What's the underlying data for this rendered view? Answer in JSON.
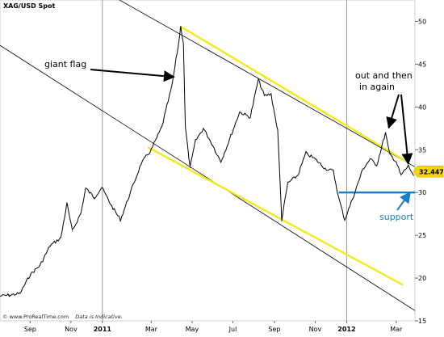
{
  "chart_data": {
    "type": "line",
    "title": "XAG/USD Spot",
    "footer_source": "www.ProRealTime.com",
    "footer_note": "Data is Indicative.",
    "x_axis": {
      "type": "date",
      "range": [
        "2010-08-01",
        "2012-04-12"
      ],
      "tick_labels": [
        {
          "label": "Sep",
          "date": "2010-09-15",
          "bold": false
        },
        {
          "label": "Nov",
          "date": "2010-11-15",
          "bold": false
        },
        {
          "label": "2011",
          "date": "2011-01-01",
          "bold": true
        },
        {
          "label": "Mar",
          "date": "2011-03-15",
          "bold": false
        },
        {
          "label": "May",
          "date": "2011-05-15",
          "bold": false
        },
        {
          "label": "Jul",
          "date": "2011-07-15",
          "bold": false
        },
        {
          "label": "Sep",
          "date": "2011-09-15",
          "bold": false
        },
        {
          "label": "Nov",
          "date": "2011-11-15",
          "bold": false
        },
        {
          "label": "2012",
          "date": "2012-01-01",
          "bold": true
        },
        {
          "label": "Mar",
          "date": "2012-03-15",
          "bold": false
        }
      ],
      "year_lines": [
        "2011-01-01",
        "2012-01-01"
      ]
    },
    "y_axis": {
      "side": "right",
      "range": [
        15,
        52.5
      ],
      "ticks": [
        15,
        20,
        25,
        30,
        35,
        40,
        45,
        50
      ]
    },
    "grid": false,
    "series": [
      {
        "color": "#000000",
        "points": [
          [
            "2010-08-01",
            17.9
          ],
          [
            "2010-08-15",
            18.0
          ],
          [
            "2010-08-31",
            18.2
          ],
          [
            "2010-09-15",
            20.4
          ],
          [
            "2010-09-30",
            21.5
          ],
          [
            "2010-10-15",
            23.8
          ],
          [
            "2010-10-31",
            24.7
          ],
          [
            "2010-11-09",
            28.7
          ],
          [
            "2010-11-17",
            25.5
          ],
          [
            "2010-11-30",
            27.6
          ],
          [
            "2010-12-07",
            30.5
          ],
          [
            "2010-12-20",
            29.4
          ],
          [
            "2010-12-31",
            30.6
          ],
          [
            "2011-01-15",
            28.4
          ],
          [
            "2011-01-28",
            26.8
          ],
          [
            "2011-02-10",
            29.6
          ],
          [
            "2011-02-28",
            33.4
          ],
          [
            "2011-03-15",
            35.0
          ],
          [
            "2011-03-31",
            37.7
          ],
          [
            "2011-04-15",
            42.5
          ],
          [
            "2011-04-25",
            47.5
          ],
          [
            "2011-04-28",
            49.4
          ],
          [
            "2011-05-02",
            47.5
          ],
          [
            "2011-05-05",
            37.6
          ],
          [
            "2011-05-12",
            32.9
          ],
          [
            "2011-05-20",
            36.0
          ],
          [
            "2011-06-01",
            37.5
          ],
          [
            "2011-06-15",
            35.5
          ],
          [
            "2011-06-27",
            33.6
          ],
          [
            "2011-07-10",
            36.2
          ],
          [
            "2011-07-25",
            39.4
          ],
          [
            "2011-08-10",
            38.8
          ],
          [
            "2011-08-22",
            43.2
          ],
          [
            "2011-08-31",
            41.3
          ],
          [
            "2011-09-10",
            41.5
          ],
          [
            "2011-09-20",
            37.2
          ],
          [
            "2011-09-26",
            26.8
          ],
          [
            "2011-10-05",
            31.1
          ],
          [
            "2011-10-20",
            32.0
          ],
          [
            "2011-11-01",
            34.6
          ],
          [
            "2011-11-15",
            33.9
          ],
          [
            "2011-11-30",
            32.8
          ],
          [
            "2011-12-12",
            32.5
          ],
          [
            "2011-12-20",
            29.4
          ],
          [
            "2011-12-29",
            26.8
          ],
          [
            "2012-01-10",
            29.3
          ],
          [
            "2012-01-25",
            32.7
          ],
          [
            "2012-02-05",
            33.9
          ],
          [
            "2012-02-15",
            33.2
          ],
          [
            "2012-02-28",
            37.0
          ],
          [
            "2012-03-05",
            34.5
          ],
          [
            "2012-03-15",
            33.6
          ],
          [
            "2012-03-22",
            32.0
          ],
          [
            "2012-04-02",
            33.1
          ],
          [
            "2012-04-10",
            32.0
          ]
        ]
      }
    ],
    "lines": [
      {
        "name": "upper-trendline",
        "color": "#f2ea1a",
        "from": [
          "2011-04-28",
          49.4
        ],
        "to": [
          "2012-04-02",
          33.5
        ]
      },
      {
        "name": "lower-trendline",
        "color": "#f2ea1a",
        "from": [
          "2011-03-10",
          35.3
        ],
        "to": [
          "2012-03-25",
          19.2
        ]
      },
      {
        "name": "upper-black-line",
        "color": "#000000",
        "from": [
          "2010-12-01",
          55.0
        ],
        "to": [
          "2012-04-12",
          33.0
        ]
      },
      {
        "name": "lower-black-line",
        "color": "#000000",
        "from": [
          "2010-08-01",
          47.2
        ],
        "to": [
          "2012-04-12",
          16.2
        ]
      },
      {
        "name": "support-line",
        "color": "#1a7fc7",
        "from": [
          "2011-12-20",
          30.0
        ],
        "to": [
          "2012-04-12",
          30.0
        ]
      }
    ],
    "last_price": {
      "value": 32.447,
      "label": "32.447",
      "color": "#f6d400"
    },
    "annotations": [
      {
        "name": "giant-flag",
        "text": "giant flag",
        "arrow_to": [
          "2011-04-18",
          43.5
        ]
      },
      {
        "name": "out-and-in",
        "text_lines": [
          "out and then",
          "in again"
        ],
        "arrows_to": [
          [
            "2012-02-28",
            37.2
          ],
          [
            "2012-04-02",
            32.8
          ]
        ]
      },
      {
        "name": "support",
        "text": "support",
        "color": "#1a7fc7",
        "arrow_to": [
          "2012-04-05",
          30.3
        ]
      }
    ]
  }
}
